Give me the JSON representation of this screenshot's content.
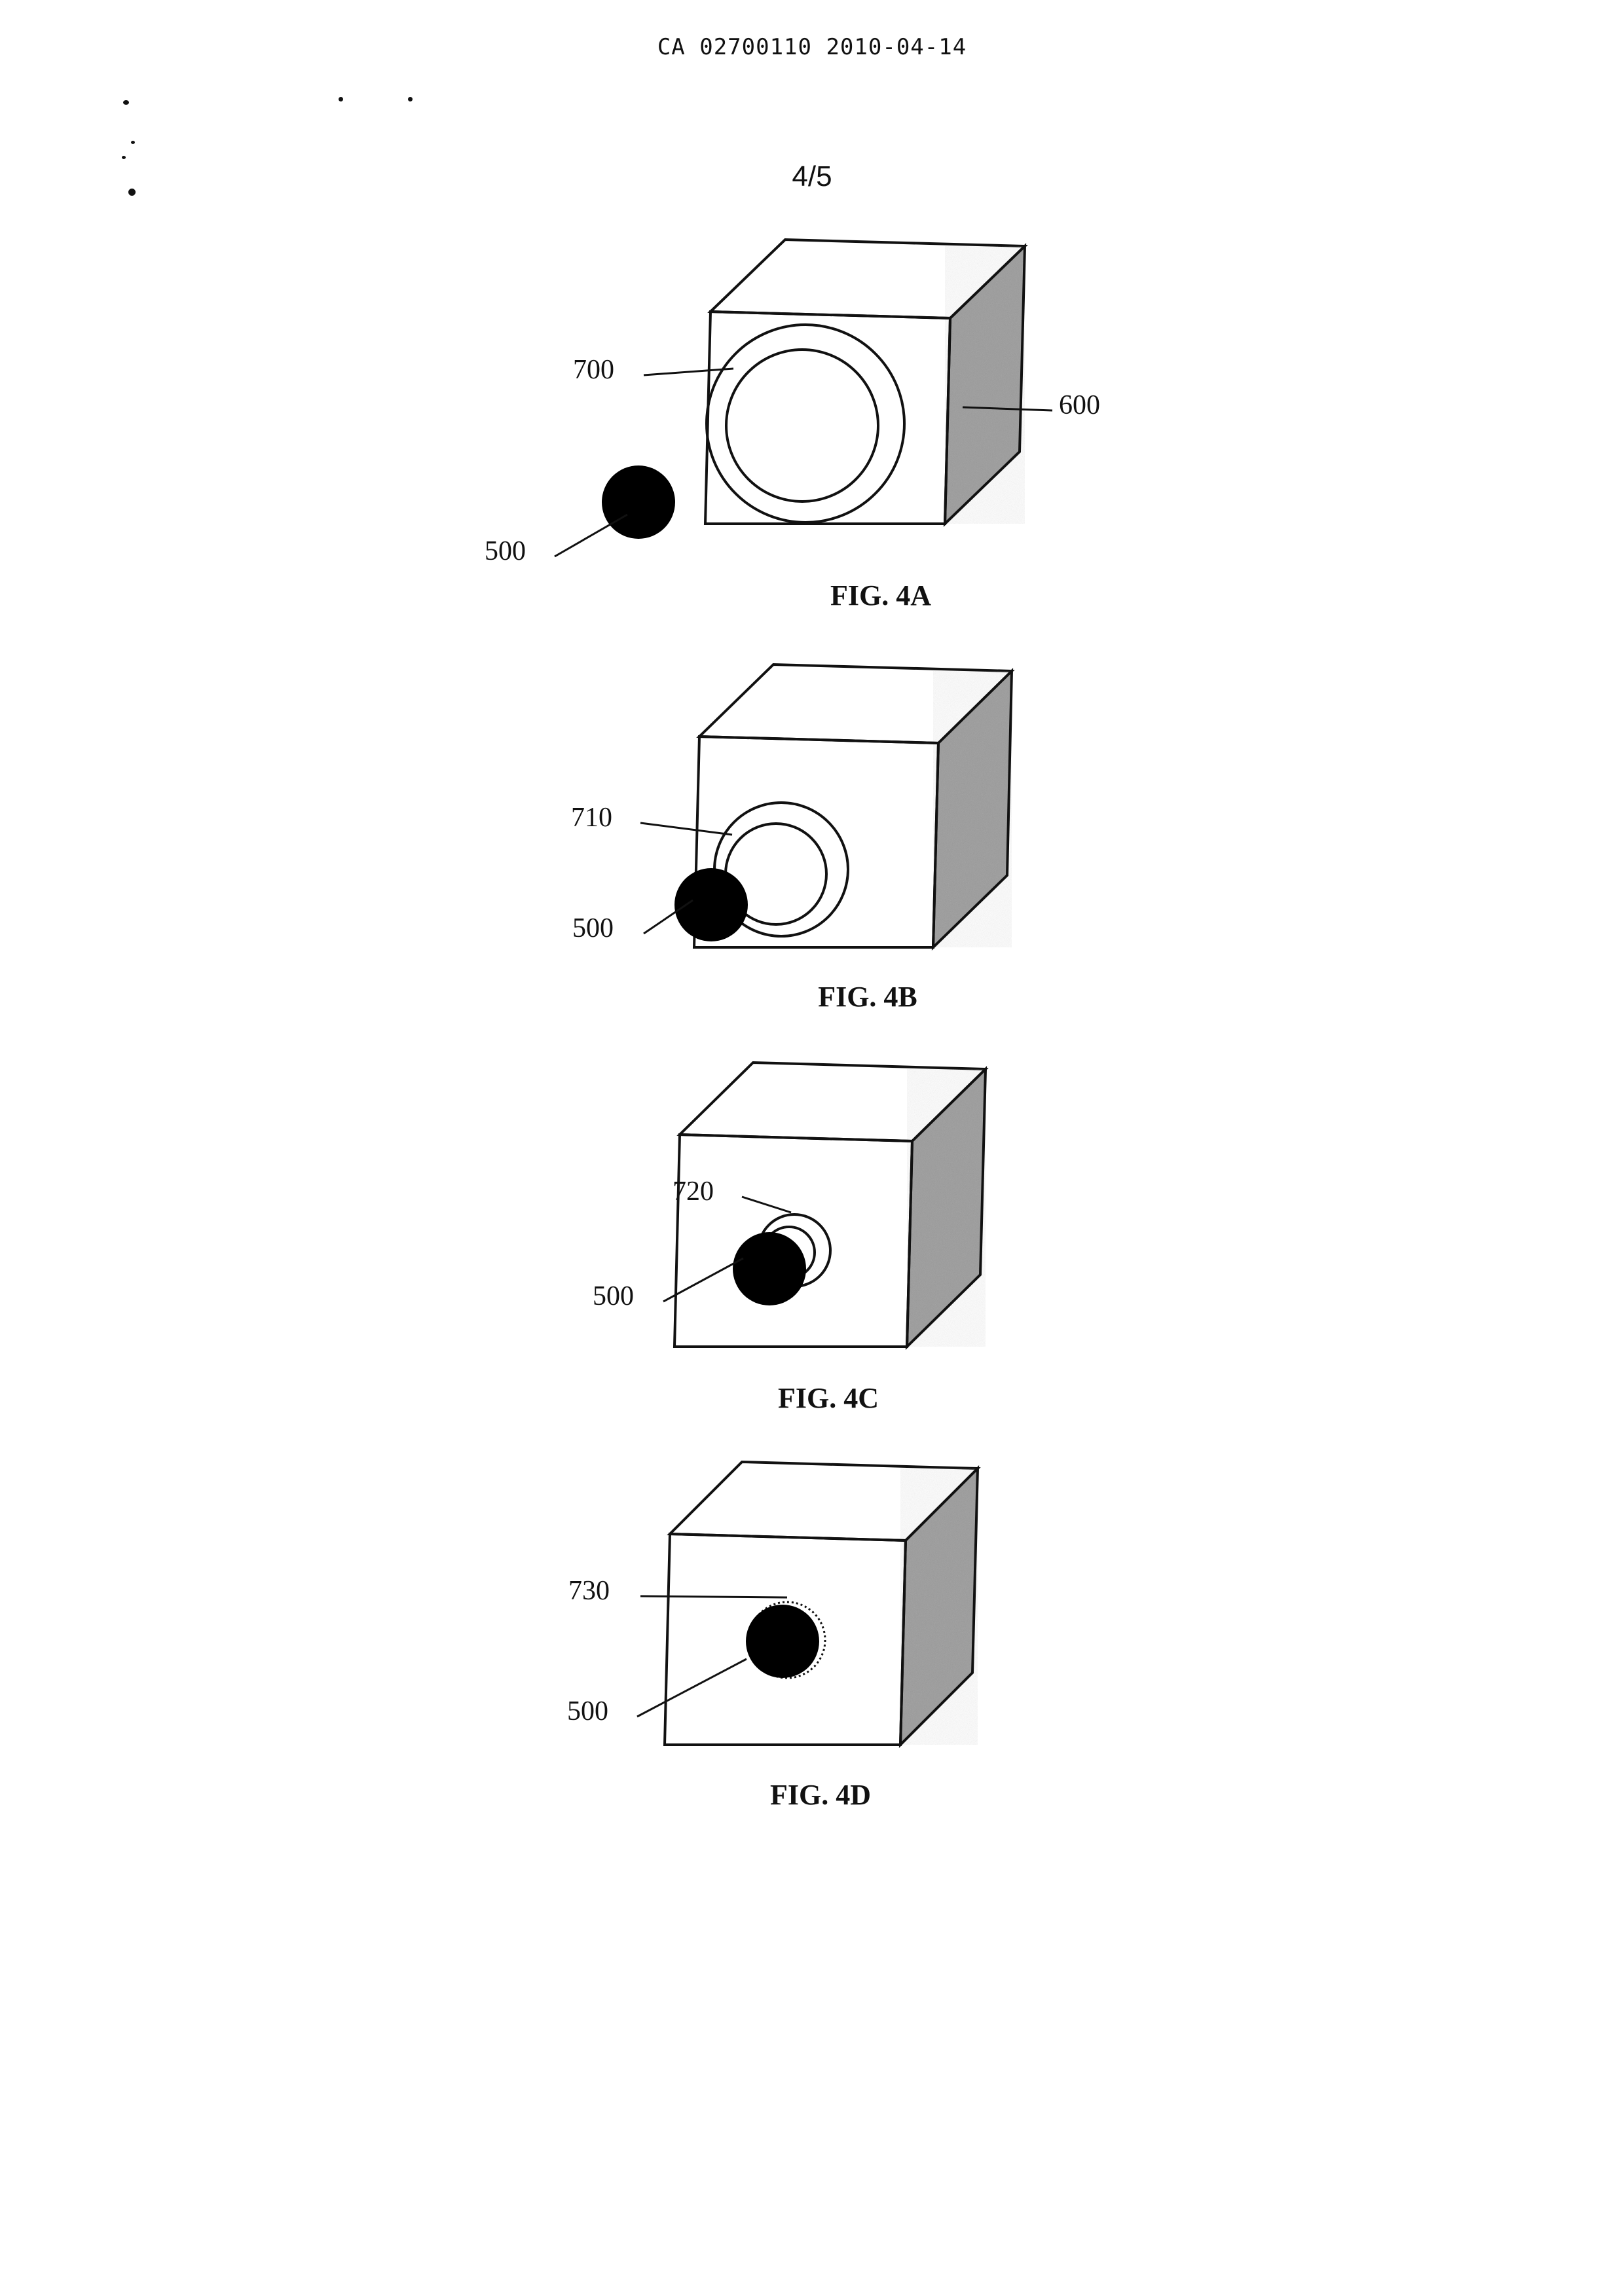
{
  "header": {
    "document_id": "CA 02700110 2010-04-14"
  },
  "sheet": {
    "number": "4/5"
  },
  "colors": {
    "ink": "#111111",
    "shade": "#9a9a9a",
    "paper": "#ffffff"
  },
  "figures": [
    {
      "id": "4A",
      "caption": "FIG. 4A",
      "labels": [
        "700",
        "600",
        "500"
      ]
    },
    {
      "id": "4B",
      "caption": "FIG. 4B",
      "labels": [
        "710",
        "500"
      ]
    },
    {
      "id": "4C",
      "caption": "FIG. 4C",
      "labels": [
        "720",
        "500"
      ]
    },
    {
      "id": "4D",
      "caption": "FIG. 4D",
      "labels": [
        "730",
        "500"
      ]
    }
  ]
}
